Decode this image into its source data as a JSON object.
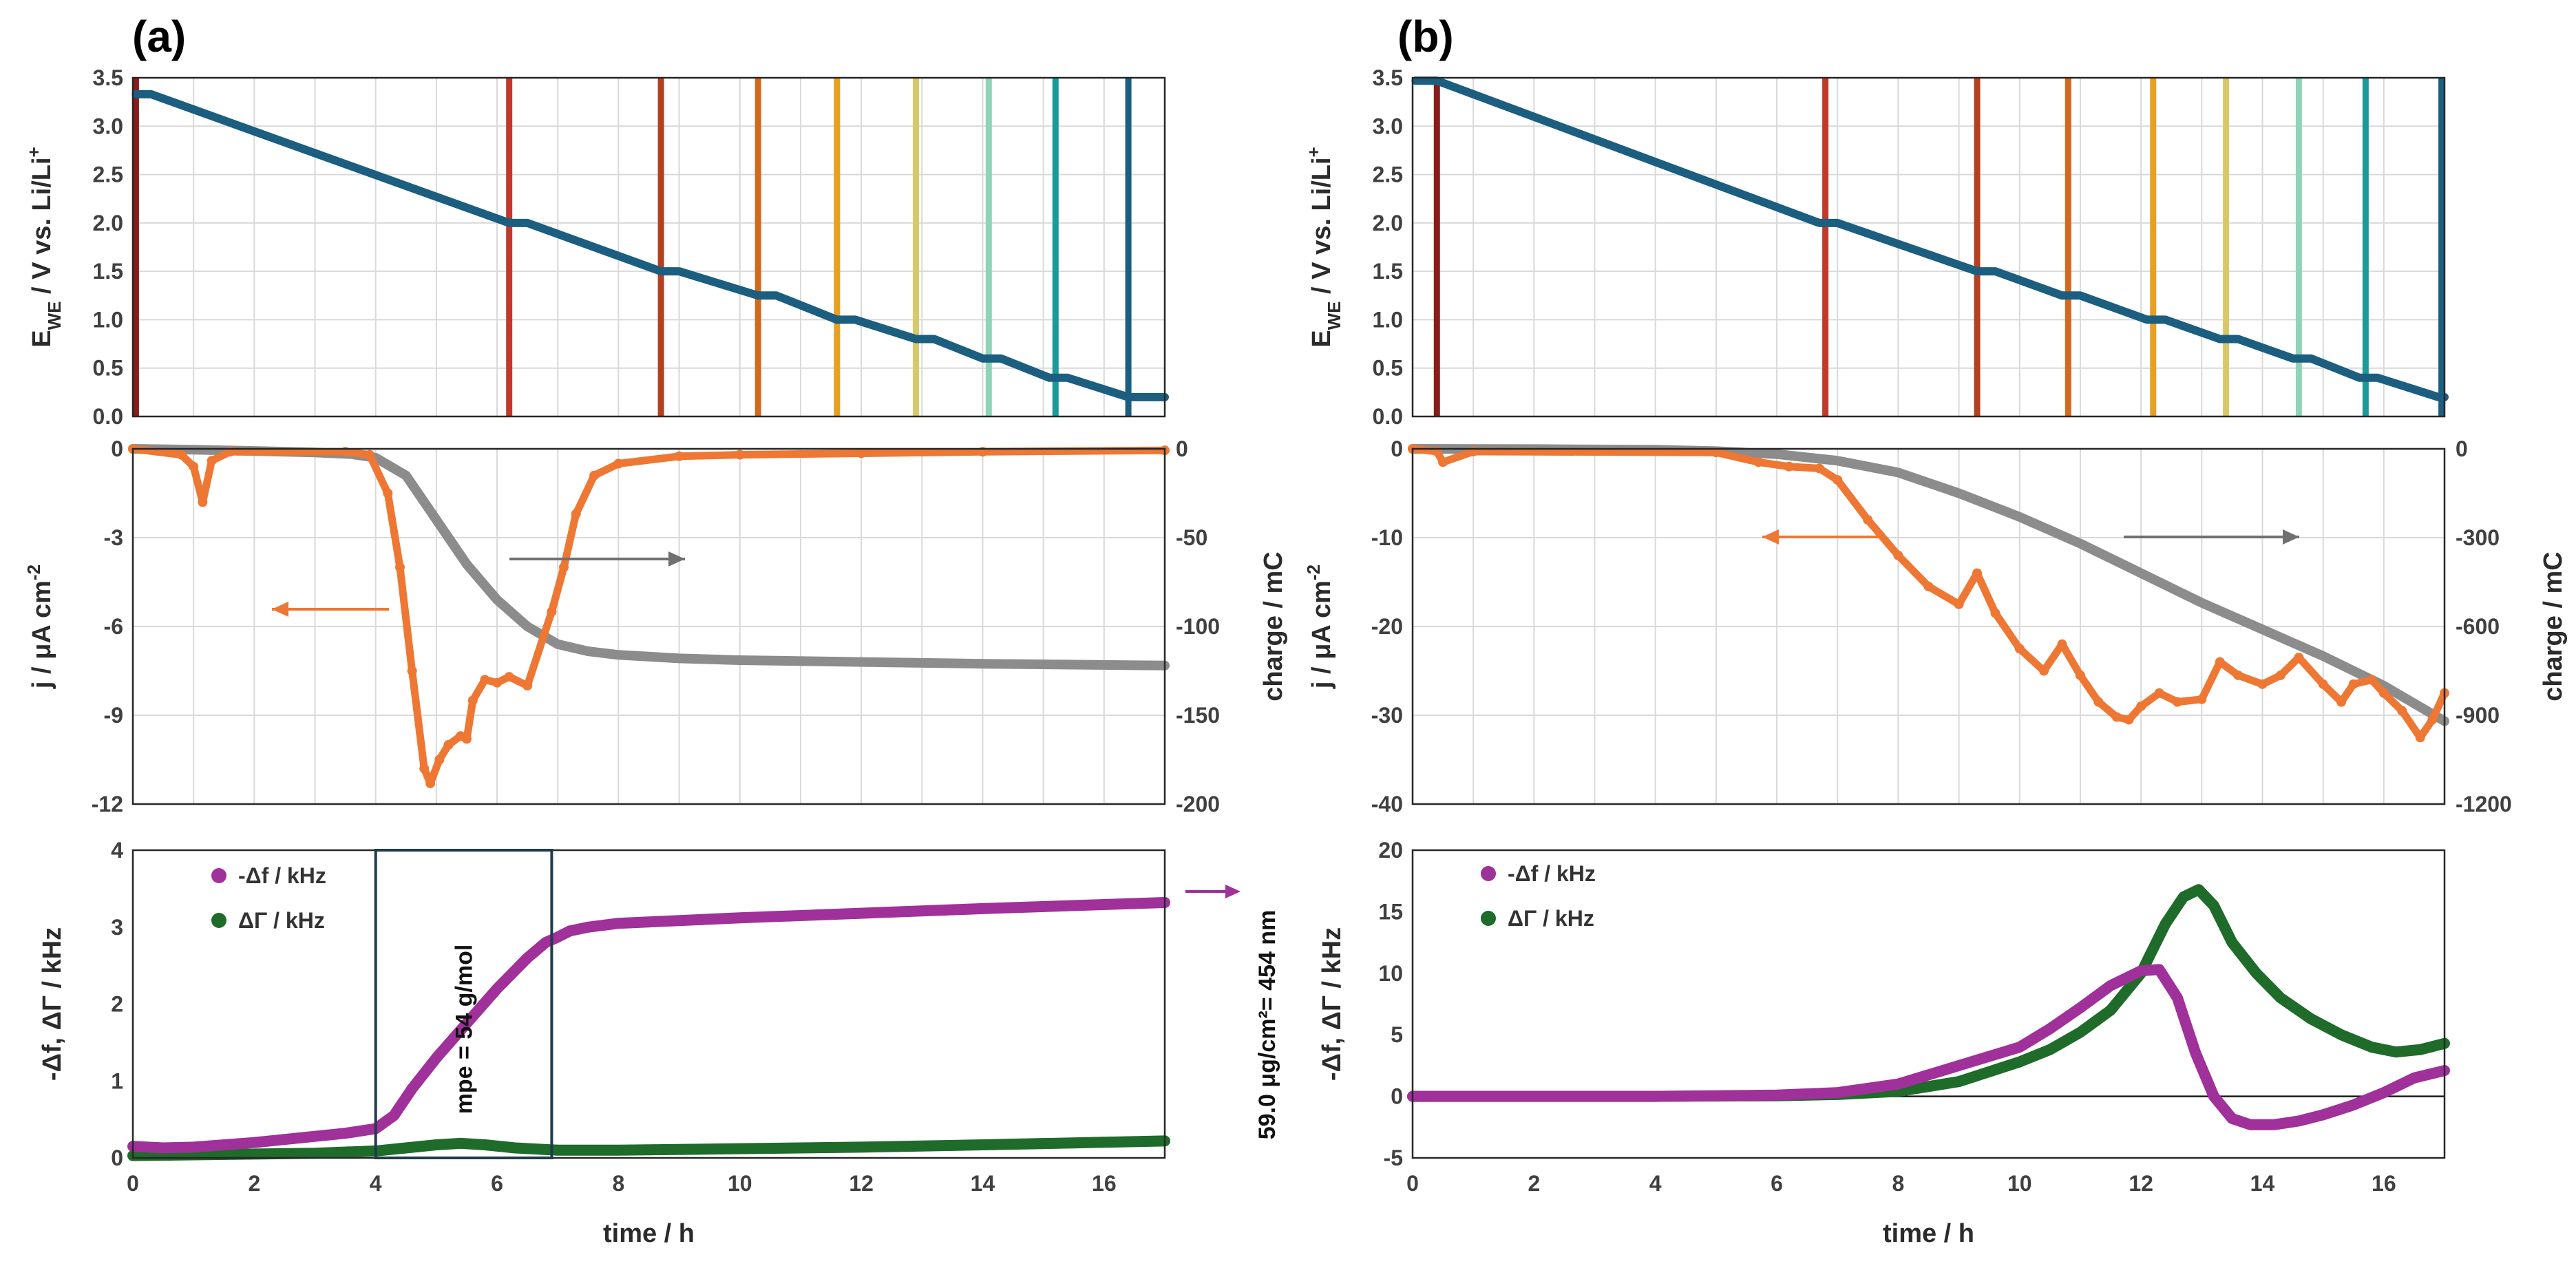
{
  "chart_data": [
    {
      "id": "a-potential",
      "panel": "(a)",
      "type": "line",
      "ylabel": "E",
      "ylabel_sub": "WE",
      "ylabel_rest": " / V vs. Li/Li",
      "ylabel_sup": "+",
      "xlim": [
        0,
        17
      ],
      "ylim": [
        0,
        3.5
      ],
      "yticks": [
        "0.0",
        "0.5",
        "1.0",
        "1.5",
        "2.0",
        "2.5",
        "3.0",
        "3.5"
      ],
      "series": [
        {
          "name": "E_WE",
          "color": "#1b5e80",
          "x": [
            0.05,
            0.3,
            6.2,
            6.5,
            8.7,
            9.0,
            10.3,
            10.6,
            11.6,
            11.9,
            12.9,
            13.2,
            14.0,
            14.3,
            15.1,
            15.4,
            16.4,
            16.7,
            17.0
          ],
          "y": [
            3.33,
            3.33,
            2.0,
            2.0,
            1.5,
            1.5,
            1.25,
            1.25,
            1.0,
            1.0,
            0.8,
            0.8,
            0.6,
            0.6,
            0.4,
            0.4,
            0.2,
            0.2,
            0.2
          ]
        }
      ],
      "markers": [
        {
          "x": 0.05,
          "color": "#8b1a1a"
        },
        {
          "x": 6.2,
          "color": "#c0392b"
        },
        {
          "x": 8.7,
          "color": "#b5401f"
        },
        {
          "x": 10.3,
          "color": "#d2691e"
        },
        {
          "x": 11.6,
          "color": "#e8a020"
        },
        {
          "x": 12.9,
          "color": "#d9c86a"
        },
        {
          "x": 14.1,
          "color": "#8fd3b8"
        },
        {
          "x": 15.2,
          "color": "#1a9a9a"
        },
        {
          "x": 16.4,
          "color": "#1b5e80"
        }
      ]
    },
    {
      "id": "a-current",
      "panel": "(a)",
      "type": "line",
      "xlim": [
        0,
        17
      ],
      "ylim": [
        -12,
        0
      ],
      "y2lim": [
        -200,
        0
      ],
      "ylabel": "j / μA cm",
      "ylabel_sup": "-2",
      "y2label": "charge / mC",
      "yticks": [
        "-12",
        "-9",
        "-6",
        "-3",
        "0"
      ],
      "y2ticks": [
        "-200",
        "-150",
        "-100",
        "-50",
        "0"
      ],
      "series": [
        {
          "name": "j",
          "axis": "left",
          "color": "#ee7733",
          "x": [
            0,
            0.8,
            1.0,
            1.15,
            1.3,
            1.6,
            3.5,
            3.9,
            4.2,
            4.4,
            4.6,
            4.8,
            4.9,
            5.05,
            5.2,
            5.4,
            5.5,
            5.6,
            5.8,
            6.0,
            6.2,
            6.5,
            6.9,
            7.1,
            7.3,
            7.6,
            8.0,
            9,
            10,
            12,
            14,
            17
          ],
          "y": [
            0,
            -0.2,
            -0.6,
            -1.8,
            -0.4,
            -0.1,
            -0.1,
            -0.2,
            -1.5,
            -4,
            -7.5,
            -10.8,
            -11.3,
            -10.5,
            -10.0,
            -9.7,
            -9.8,
            -8.5,
            -7.8,
            -7.9,
            -7.7,
            -8.0,
            -5.5,
            -4.0,
            -2.2,
            -0.9,
            -0.5,
            -0.25,
            -0.2,
            -0.15,
            -0.1,
            -0.05
          ]
        },
        {
          "name": "charge",
          "axis": "right",
          "color": "#8c8c8c",
          "x": [
            0,
            1,
            2,
            3,
            3.6,
            4.0,
            4.5,
            5.0,
            5.5,
            6.0,
            6.5,
            7.0,
            7.5,
            8.0,
            9,
            10,
            12,
            14,
            17
          ],
          "y": [
            0,
            -0.5,
            -1.2,
            -2,
            -3,
            -5,
            -15,
            -40,
            -65,
            -85,
            -100,
            -110,
            -114,
            -116,
            -118,
            -119,
            -120,
            -121,
            -122
          ]
        }
      ],
      "arrows": [
        {
          "points_to": "left",
          "color": "#ee7733"
        },
        {
          "points_to": "right",
          "color": "#707070"
        }
      ]
    },
    {
      "id": "a-qcm",
      "panel": "(a)",
      "type": "line",
      "xlim": [
        0,
        17
      ],
      "ylim": [
        0,
        4
      ],
      "xlabel": "time / h",
      "ylabel": "-Δf, ΔΓ / kHz",
      "xticks": [
        "0",
        "2",
        "4",
        "6",
        "8",
        "10",
        "12",
        "14",
        "16"
      ],
      "yticks": [
        "0",
        "1",
        "2",
        "3",
        "4"
      ],
      "legend": [
        "-Δf / kHz",
        "ΔΓ / kHz"
      ],
      "series": [
        {
          "name": "-Δf / kHz",
          "color": "#a0309a",
          "x": [
            0,
            0.5,
            1,
            2,
            3,
            3.5,
            4.0,
            4.3,
            4.6,
            5.0,
            5.5,
            6.0,
            6.5,
            6.8,
            7.0,
            7.2,
            7.5,
            8.0,
            10,
            12,
            14,
            17
          ],
          "y": [
            0.15,
            0.13,
            0.14,
            0.2,
            0.28,
            0.32,
            0.38,
            0.55,
            0.9,
            1.3,
            1.75,
            2.2,
            2.6,
            2.8,
            2.87,
            2.95,
            3.0,
            3.05,
            3.12,
            3.18,
            3.24,
            3.32
          ]
        },
        {
          "name": "ΔΓ / kHz",
          "color": "#1e6b2a",
          "x": [
            0,
            1,
            2,
            3,
            4,
            4.5,
            5.0,
            5.4,
            5.8,
            6.3,
            7.0,
            8,
            10,
            12,
            14,
            17
          ],
          "y": [
            0.03,
            0.04,
            0.05,
            0.06,
            0.09,
            0.13,
            0.17,
            0.19,
            0.17,
            0.13,
            0.1,
            0.1,
            0.12,
            0.14,
            0.17,
            0.22
          ]
        }
      ],
      "box_x": [
        4.0,
        6.9
      ],
      "box_label": "mpe = 54 g/mol",
      "side_label": "59.0 μg/cm²= 454 nm"
    },
    {
      "id": "b-potential",
      "panel": "(b)",
      "type": "line",
      "xlim": [
        0,
        17
      ],
      "ylim": [
        0,
        3.5
      ],
      "ylabel": "E",
      "ylabel_sub": "WE",
      "ylabel_rest": " / V vs. Li/Li",
      "ylabel_sup": "+",
      "yticks": [
        "0.0",
        "0.5",
        "1.0",
        "1.5",
        "2.0",
        "2.5",
        "3.0",
        "3.5"
      ],
      "series": [
        {
          "name": "E_WE",
          "color": "#1b5e80",
          "x": [
            0.05,
            0.4,
            6.7,
            7.0,
            9.3,
            9.6,
            10.7,
            11.0,
            12.1,
            12.4,
            13.3,
            13.6,
            14.5,
            14.8,
            15.6,
            15.9,
            16.9,
            17.0
          ],
          "y": [
            3.47,
            3.47,
            2.0,
            2.0,
            1.5,
            1.5,
            1.25,
            1.25,
            1.0,
            1.0,
            0.8,
            0.8,
            0.6,
            0.6,
            0.4,
            0.4,
            0.2,
            0.2
          ]
        }
      ],
      "markers": [
        {
          "x": 0.4,
          "color": "#8b1a1a"
        },
        {
          "x": 6.8,
          "color": "#c0392b"
        },
        {
          "x": 9.3,
          "color": "#b5401f"
        },
        {
          "x": 10.8,
          "color": "#d2691e"
        },
        {
          "x": 12.2,
          "color": "#e8a020"
        },
        {
          "x": 13.4,
          "color": "#d9c86a"
        },
        {
          "x": 14.6,
          "color": "#8fd3b8"
        },
        {
          "x": 15.7,
          "color": "#1a9a9a"
        },
        {
          "x": 16.95,
          "color": "#1b5e80"
        }
      ]
    },
    {
      "id": "b-current",
      "panel": "(b)",
      "type": "line",
      "xlim": [
        0,
        17
      ],
      "ylim": [
        -40,
        0
      ],
      "y2lim": [
        -1200,
        0
      ],
      "ylabel": "j / μA cm",
      "ylabel_sup": "-2",
      "y2label": "charge / mC",
      "yticks": [
        "-40",
        "-30",
        "-20",
        "-10",
        "0"
      ],
      "y2ticks": [
        "-1200",
        "-900",
        "-600",
        "-300",
        "0"
      ],
      "series": [
        {
          "name": "j",
          "axis": "left",
          "color": "#ee7733",
          "x": [
            0,
            0.4,
            0.5,
            1,
            5,
            5.7,
            6.2,
            6.7,
            7.0,
            7.5,
            8.0,
            8.5,
            9.0,
            9.3,
            9.6,
            10.0,
            10.4,
            10.7,
            11.0,
            11.3,
            11.6,
            11.8,
            12.0,
            12.3,
            12.6,
            13.0,
            13.3,
            13.6,
            14.0,
            14.3,
            14.6,
            15.0,
            15.3,
            15.5,
            15.8,
            16.0,
            16.3,
            16.6,
            16.8,
            17.0
          ],
          "y": [
            0,
            -0.3,
            -1.5,
            -0.3,
            -0.4,
            -1.5,
            -2.0,
            -2.2,
            -3.5,
            -8,
            -12,
            -15.5,
            -17.5,
            -14,
            -18.5,
            -22.5,
            -25,
            -22,
            -25.5,
            -28.5,
            -30.2,
            -30.5,
            -29,
            -27.5,
            -28.5,
            -28.2,
            -24,
            -25.5,
            -26.5,
            -25.5,
            -23.5,
            -26.5,
            -28.5,
            -26.5,
            -26,
            -27.5,
            -29.5,
            -32.5,
            -30.5,
            -27.5
          ]
        },
        {
          "name": "charge",
          "axis": "right",
          "color": "#8c8c8c",
          "x": [
            0,
            2,
            4,
            5,
            6,
            7,
            8,
            9,
            10,
            11,
            12,
            13,
            14,
            15,
            16,
            17
          ],
          "y": [
            0,
            -1,
            -3,
            -8,
            -18,
            -40,
            -80,
            -150,
            -230,
            -320,
            -420,
            -520,
            -610,
            -700,
            -800,
            -920
          ]
        }
      ],
      "arrows": [
        {
          "points_to": "left",
          "color": "#ee7733"
        },
        {
          "points_to": "right",
          "color": "#707070"
        }
      ]
    },
    {
      "id": "b-qcm",
      "panel": "(b)",
      "type": "line",
      "xlim": [
        0,
        17
      ],
      "ylim": [
        -5,
        20
      ],
      "xlabel": "time / h",
      "ylabel": "-Δf, ΔΓ / kHz",
      "xticks": [
        "0",
        "2",
        "4",
        "6",
        "8",
        "10",
        "12",
        "14",
        "16"
      ],
      "yticks": [
        "-5",
        "0",
        "5",
        "10",
        "15",
        "20"
      ],
      "legend": [
        "-Δf / kHz",
        "ΔΓ / kHz"
      ],
      "series": [
        {
          "name": "-Δf / kHz",
          "color": "#a0309a",
          "x": [
            0,
            2,
            4,
            6,
            7,
            8,
            9,
            10,
            10.5,
            11,
            11.5,
            12.0,
            12.3,
            12.6,
            12.9,
            13.2,
            13.5,
            13.8,
            14.2,
            14.6,
            15,
            15.5,
            16,
            16.5,
            17
          ],
          "y": [
            0,
            0,
            0,
            0.1,
            0.3,
            1.0,
            2.5,
            4.0,
            5.5,
            7.2,
            9.0,
            10.2,
            10.3,
            8.0,
            3.5,
            0.0,
            -1.8,
            -2.3,
            -2.3,
            -2.0,
            -1.5,
            -0.7,
            0.3,
            1.5,
            2.1
          ]
        },
        {
          "name": "ΔΓ / kHz",
          "color": "#1e6b2a",
          "x": [
            0,
            2,
            4,
            6,
            7,
            8,
            9,
            10,
            10.5,
            11,
            11.5,
            12,
            12.4,
            12.7,
            12.95,
            13.2,
            13.5,
            13.9,
            14.3,
            14.8,
            15.3,
            15.8,
            16.2,
            16.6,
            17
          ],
          "y": [
            0,
            0,
            0,
            0.05,
            0.15,
            0.4,
            1.2,
            2.8,
            3.8,
            5.2,
            7.0,
            10.0,
            14.0,
            16.2,
            16.8,
            15.5,
            12.5,
            10.0,
            8.0,
            6.3,
            5.0,
            4.0,
            3.6,
            3.8,
            4.3
          ]
        }
      ]
    }
  ]
}
